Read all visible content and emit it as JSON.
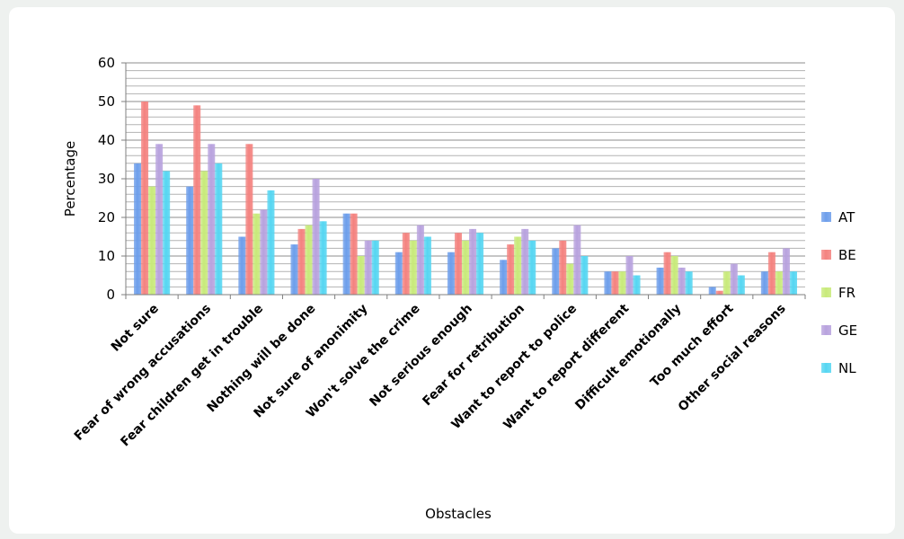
{
  "chart_data": {
    "type": "bar",
    "title": "",
    "xlabel": "Obstacles",
    "ylabel": "Percentage",
    "ylim": [
      0,
      60
    ],
    "yticks": [
      0,
      10,
      20,
      30,
      40,
      50,
      60
    ],
    "grid": true,
    "legend_position": "right",
    "categories": [
      "Not sure",
      "Fear of wrong accusations",
      "Fear children get in trouble",
      "Nothing will be done",
      "Not sure of anonimity",
      "Won't solve the crime",
      "Not serious enough",
      "Fear for retribution",
      "Want to report to police",
      "Want to report different",
      "Difficult emotionally",
      "Too much effort",
      "Other social reasons"
    ],
    "series": [
      {
        "name": "AT",
        "color": "#6d9eeb",
        "values": [
          34,
          28,
          15,
          13,
          21,
          11,
          11,
          9,
          12,
          6,
          7,
          2,
          6
        ]
      },
      {
        "name": "BE",
        "color": "#f4827f",
        "values": [
          50,
          49,
          39,
          17,
          21,
          16,
          16,
          13,
          14,
          6,
          11,
          1,
          11
        ]
      },
      {
        "name": "FR",
        "color": "#c8ea7a",
        "values": [
          28,
          32,
          21,
          18,
          10,
          14,
          14,
          15,
          8,
          6,
          10,
          6,
          6
        ]
      },
      {
        "name": "GE",
        "color": "#b8a2de",
        "values": [
          39,
          39,
          22,
          30,
          14,
          18,
          17,
          17,
          18,
          10,
          7,
          8,
          12
        ]
      },
      {
        "name": "NL",
        "color": "#55d6f2",
        "values": [
          32,
          34,
          27,
          19,
          14,
          15,
          16,
          14,
          10,
          5,
          6,
          5,
          6
        ]
      }
    ]
  }
}
